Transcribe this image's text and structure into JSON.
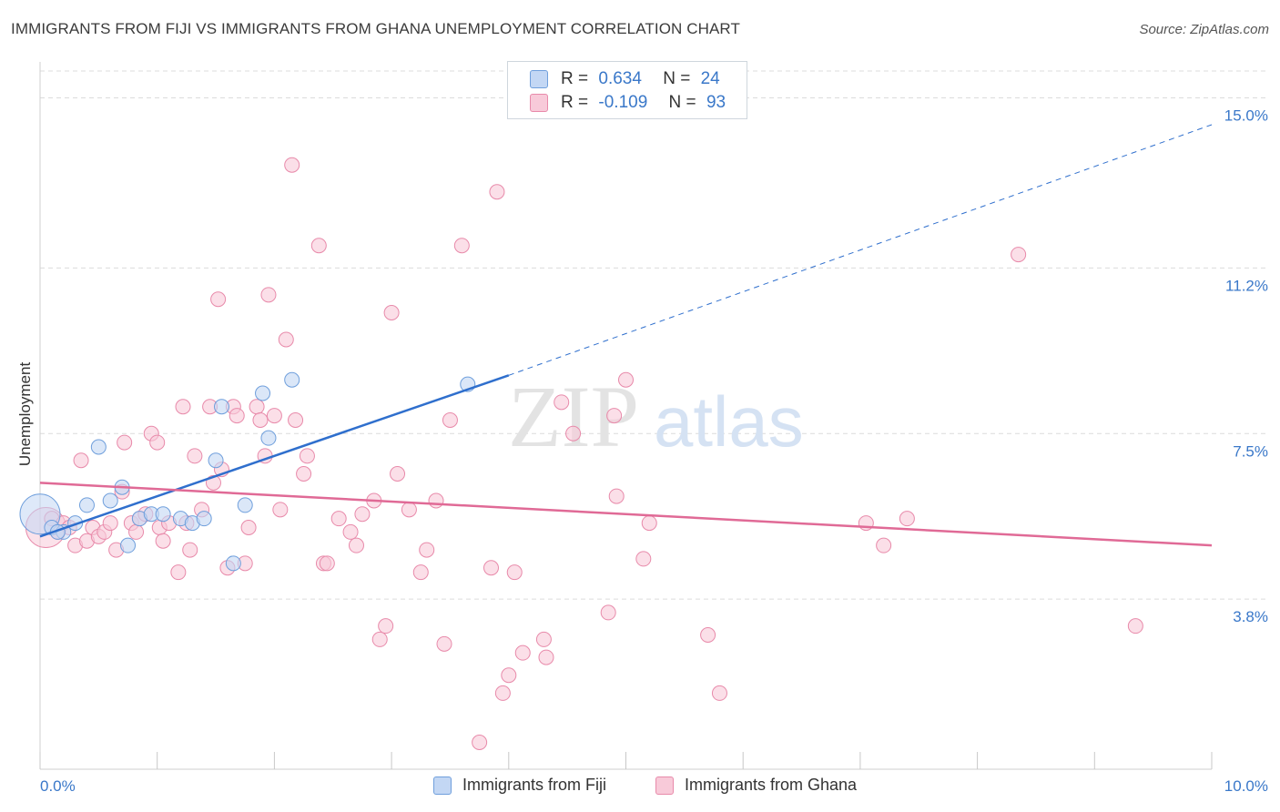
{
  "header": {
    "title": "IMMIGRANTS FROM FIJI VS IMMIGRANTS FROM GHANA UNEMPLOYMENT CORRELATION CHART",
    "source": "Source: ZipAtlas.com"
  },
  "watermark": {
    "zip": "ZIP",
    "atlas": "atlas"
  },
  "legend": {
    "fiji": {
      "r_label": "R =",
      "r_value": "0.634",
      "n_label": "N =",
      "n_value": "24"
    },
    "ghana": {
      "r_label": "R =",
      "r_value": "-0.109",
      "n_label": "N =",
      "n_value": "93"
    }
  },
  "colors": {
    "fiji_fill": "#c3d7f4",
    "fiji_stroke": "#6f9fdc",
    "fiji_line": "#2f6fcd",
    "ghana_fill": "#f8cad9",
    "ghana_stroke": "#e88aaa",
    "ghana_line": "#e06a96",
    "axis_text": "#3a78c9",
    "grid": "#dcdcdc"
  },
  "chart_data": {
    "type": "scatter",
    "title": "IMMIGRANTS FROM FIJI VS IMMIGRANTS FROM GHANA UNEMPLOYMENT CORRELATION CHART",
    "xlabel": "",
    "ylabel": "Unemployment",
    "xlim": [
      0.0,
      10.0
    ],
    "ylim": [
      0.0,
      15.6
    ],
    "x_tick_labels": [
      "0.0%",
      "10.0%"
    ],
    "y_ticks": [
      3.8,
      7.5,
      11.2,
      15.0
    ],
    "y_tick_labels": [
      "3.8%",
      "7.5%",
      "11.2%",
      "15.0%"
    ],
    "grid": true,
    "legend_position": "top-center",
    "series": [
      {
        "name": "Immigrants from Fiji",
        "r": 0.634,
        "n": 24,
        "trend": {
          "x0": 0.0,
          "y0": 5.2,
          "x1": 4.0,
          "y1": 8.8,
          "dash_to_x": 10.0,
          "dash_to_y": 14.4
        },
        "points": [
          [
            0.0,
            5.7,
            "large"
          ],
          [
            0.1,
            5.4
          ],
          [
            0.2,
            5.3
          ],
          [
            0.3,
            5.5
          ],
          [
            0.4,
            5.9
          ],
          [
            0.5,
            7.2
          ],
          [
            0.6,
            6.0
          ],
          [
            0.7,
            6.3
          ],
          [
            0.75,
            5.0
          ],
          [
            0.85,
            5.6
          ],
          [
            0.95,
            5.7
          ],
          [
            1.05,
            5.7
          ],
          [
            1.2,
            5.6
          ],
          [
            1.3,
            5.5
          ],
          [
            1.4,
            5.6
          ],
          [
            1.5,
            6.9
          ],
          [
            1.55,
            8.1
          ],
          [
            1.65,
            4.6
          ],
          [
            1.75,
            5.9
          ],
          [
            1.9,
            8.4
          ],
          [
            1.95,
            7.4
          ],
          [
            2.15,
            8.7
          ],
          [
            3.65,
            8.6
          ],
          [
            0.15,
            5.3
          ]
        ]
      },
      {
        "name": "Immigrants from Ghana",
        "r": -0.109,
        "n": 93,
        "trend": {
          "x0": 0.0,
          "y0": 6.4,
          "x1": 10.0,
          "y1": 5.0
        },
        "points": [
          [
            0.05,
            5.4,
            "large"
          ],
          [
            0.1,
            5.6
          ],
          [
            0.15,
            5.3
          ],
          [
            0.2,
            5.5
          ],
          [
            0.3,
            5.0
          ],
          [
            0.35,
            6.9
          ],
          [
            0.4,
            5.1
          ],
          [
            0.45,
            5.4
          ],
          [
            0.5,
            5.2
          ],
          [
            0.55,
            5.3
          ],
          [
            0.6,
            5.5
          ],
          [
            0.65,
            4.9
          ],
          [
            0.7,
            6.2
          ],
          [
            0.72,
            7.3
          ],
          [
            0.78,
            5.5
          ],
          [
            0.82,
            5.3
          ],
          [
            0.85,
            5.6
          ],
          [
            0.9,
            5.7
          ],
          [
            0.95,
            7.5
          ],
          [
            1.0,
            7.3
          ],
          [
            1.02,
            5.4
          ],
          [
            1.05,
            5.1
          ],
          [
            1.1,
            5.5
          ],
          [
            1.18,
            4.4
          ],
          [
            1.22,
            8.1
          ],
          [
            1.25,
            5.5
          ],
          [
            1.28,
            4.9
          ],
          [
            1.32,
            7.0
          ],
          [
            1.38,
            5.8
          ],
          [
            1.45,
            8.1
          ],
          [
            1.48,
            6.4
          ],
          [
            1.52,
            10.5
          ],
          [
            1.55,
            6.7
          ],
          [
            1.6,
            4.5
          ],
          [
            1.65,
            8.1
          ],
          [
            1.68,
            7.9
          ],
          [
            1.75,
            4.6
          ],
          [
            1.78,
            5.4
          ],
          [
            1.85,
            8.1
          ],
          [
            1.88,
            7.8
          ],
          [
            1.92,
            7.0
          ],
          [
            1.95,
            10.6
          ],
          [
            2.0,
            7.9
          ],
          [
            2.05,
            5.8
          ],
          [
            2.1,
            9.6
          ],
          [
            2.15,
            13.5
          ],
          [
            2.18,
            7.8
          ],
          [
            2.25,
            6.6
          ],
          [
            2.28,
            7.0
          ],
          [
            2.38,
            11.7
          ],
          [
            2.42,
            4.6
          ],
          [
            2.45,
            4.6
          ],
          [
            2.55,
            5.6
          ],
          [
            2.65,
            5.3
          ],
          [
            2.7,
            5.0
          ],
          [
            2.75,
            5.7
          ],
          [
            2.85,
            6.0
          ],
          [
            2.9,
            2.9
          ],
          [
            2.95,
            3.2
          ],
          [
            3.0,
            10.2
          ],
          [
            3.05,
            6.6
          ],
          [
            3.15,
            5.8
          ],
          [
            3.25,
            4.4
          ],
          [
            3.3,
            4.9
          ],
          [
            3.38,
            6.0
          ],
          [
            3.45,
            2.8
          ],
          [
            3.5,
            7.8
          ],
          [
            3.6,
            11.7
          ],
          [
            3.85,
            4.5
          ],
          [
            3.95,
            1.7
          ],
          [
            4.0,
            2.1
          ],
          [
            4.05,
            4.4
          ],
          [
            3.75,
            0.6
          ],
          [
            3.9,
            12.9
          ],
          [
            4.12,
            2.6
          ],
          [
            4.3,
            2.9
          ],
          [
            4.32,
            2.5
          ],
          [
            4.45,
            8.2
          ],
          [
            4.55,
            7.5
          ],
          [
            4.85,
            3.5
          ],
          [
            4.9,
            7.9
          ],
          [
            4.92,
            6.1
          ],
          [
            5.0,
            8.7
          ],
          [
            5.15,
            4.7
          ],
          [
            5.2,
            5.5
          ],
          [
            5.7,
            3.0
          ],
          [
            5.8,
            1.7
          ],
          [
            7.05,
            5.5
          ],
          [
            7.2,
            5.0
          ],
          [
            7.4,
            5.6
          ],
          [
            8.35,
            11.5
          ],
          [
            9.35,
            3.2
          ],
          [
            0.25,
            5.4
          ]
        ]
      }
    ]
  },
  "bottom_legend": {
    "fiji_label": "Immigrants from Fiji",
    "ghana_label": "Immigrants from Ghana"
  }
}
